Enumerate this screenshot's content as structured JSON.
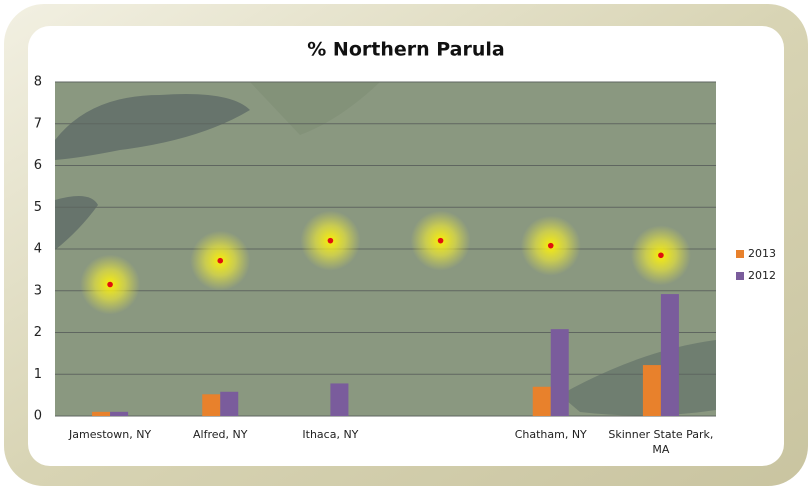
{
  "chart_data": {
    "type": "bar",
    "title": "% Northern Parula",
    "categories": [
      "Jamestown, NY",
      "Alfred, NY",
      "Ithaca, NY",
      null,
      "Chatham, NY",
      "Skinner State Park, MA"
    ],
    "series": [
      {
        "name": "2013",
        "color": "#e8812c",
        "values": [
          0.1,
          0.52,
          null,
          null,
          0.7,
          1.22
        ]
      },
      {
        "name": "2012",
        "color": "#7a5c9c",
        "values": [
          0.1,
          0.58,
          0.78,
          null,
          2.08,
          2.92
        ]
      }
    ],
    "points": {
      "color": "#e01010",
      "values": [
        3.15,
        3.72,
        4.2,
        4.2,
        4.08,
        3.85
      ]
    },
    "ylim": [
      0,
      8
    ],
    "yticks": [
      0,
      1,
      2,
      3,
      4,
      5,
      6,
      7,
      8
    ],
    "grid": true,
    "legend": "right"
  }
}
